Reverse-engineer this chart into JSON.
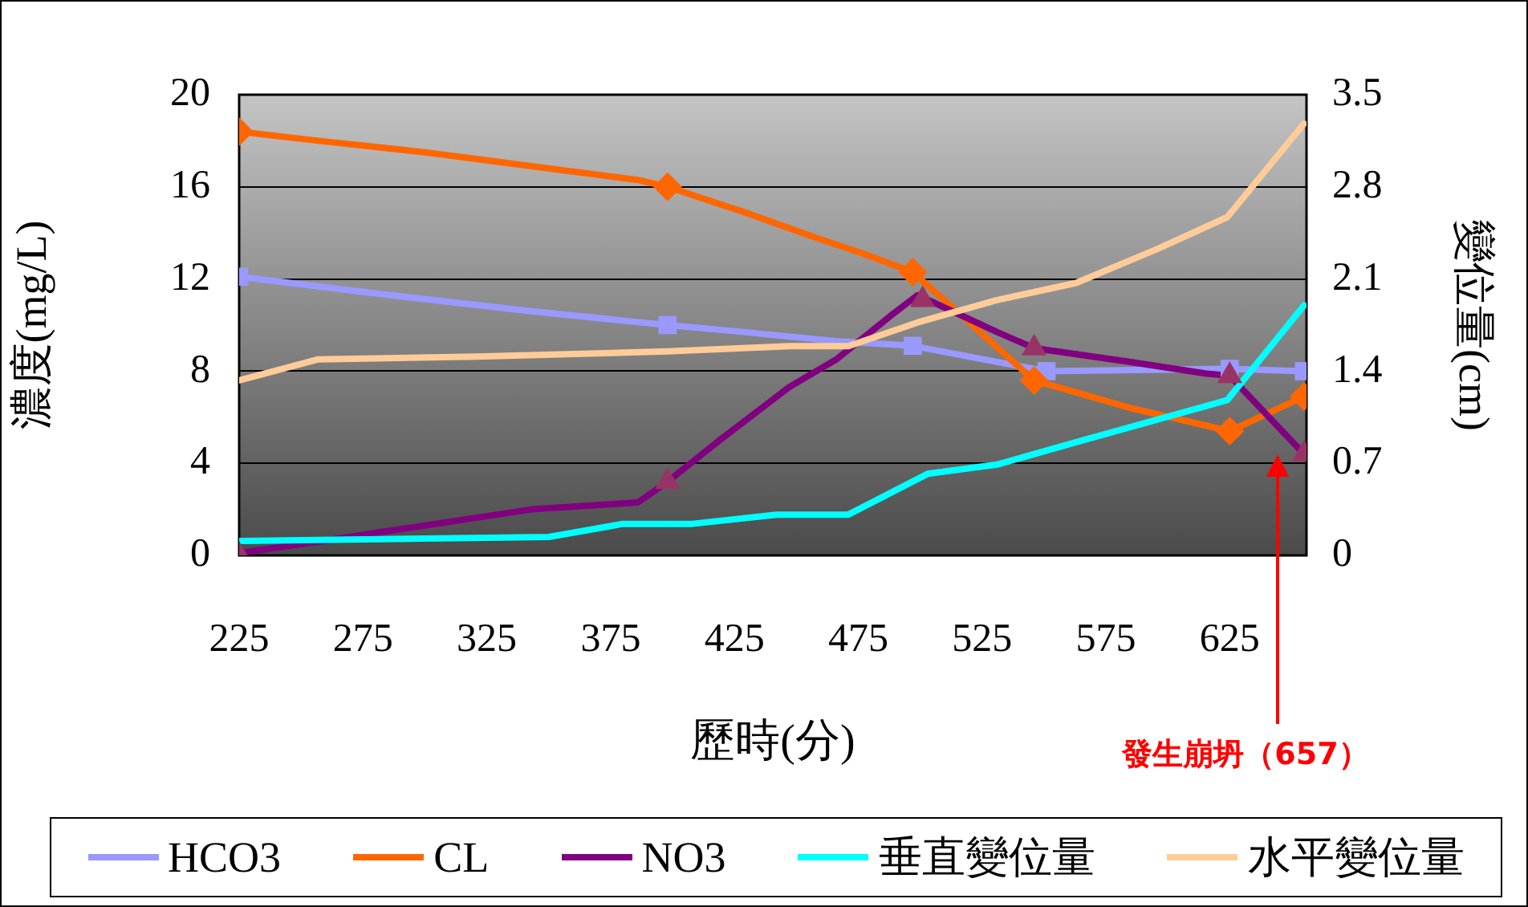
{
  "chart_data": {
    "type": "line",
    "xlabel": "歷時(分)",
    "ylabel": "濃度(mg/L)",
    "y2label": "變位量(cm)",
    "xlim": [
      225,
      656
    ],
    "xticks": [
      225,
      275,
      325,
      375,
      425,
      475,
      525,
      575,
      625
    ],
    "ylim": [
      0,
      20
    ],
    "yticks": [
      0,
      4,
      8,
      12,
      16,
      20
    ],
    "y2lim": [
      0,
      3.5
    ],
    "y2ticks": [
      0,
      0.7,
      1.4,
      2.1,
      2.8,
      3.5
    ],
    "grid": "y",
    "legend": "bottom",
    "annotations": [
      "發生崩坍（657）"
    ],
    "series": [
      {
        "name": "HCO3",
        "color": "#9999ff",
        "marker": "none",
        "x": [
          225,
          278,
          343,
          398,
          429,
          466,
          497,
          531,
          551,
          625,
          655
        ],
        "values": [
          12.1,
          11.4,
          10.6,
          10.0,
          9.7,
          9.3,
          9.1,
          8.4,
          8.0,
          8.1,
          8.0
        ]
      },
      {
        "name": "CL",
        "color": "#ff6600",
        "marker": "none",
        "x": [
          225,
          257,
          300,
          343,
          386,
          398,
          429,
          455,
          477,
          497,
          520,
          546,
          585,
          625,
          655
        ],
        "values": [
          18.4,
          18.0,
          17.5,
          16.9,
          16.3,
          16.0,
          14.9,
          13.9,
          13.1,
          12.3,
          10.1,
          7.6,
          6.4,
          5.4,
          6.9
        ]
      },
      {
        "name": "NO3",
        "color": "#800080",
        "marker": "none",
        "x": [
          225,
          257,
          300,
          343,
          386,
          398,
          419,
          447,
          466,
          488,
          499,
          531,
          546,
          585,
          615,
          625,
          655
        ],
        "values": [
          0.1,
          0.6,
          1.3,
          2.0,
          2.3,
          3.2,
          5.0,
          7.3,
          8.5,
          10.4,
          11.3,
          9.7,
          9.0,
          8.4,
          7.9,
          7.8,
          4.4
        ]
      },
      {
        "name": "垂直變位量",
        "color": "#00ffff",
        "marker": "none",
        "axis": "y2",
        "x": [
          225,
          350,
          380,
          408,
          442,
          471,
          503,
          531,
          563,
          624,
          655
        ],
        "values": [
          0.11,
          0.14,
          0.24,
          0.24,
          0.31,
          0.31,
          0.62,
          0.69,
          0.86,
          1.18,
          1.9
        ]
      },
      {
        "name": "水平變位量",
        "color": "#ffcc99",
        "marker": "none",
        "axis": "y2",
        "x": [
          225,
          257,
          321,
          398,
          447,
          471,
          499,
          531,
          563,
          596,
          624,
          655
        ],
        "values": [
          1.33,
          1.49,
          1.51,
          1.55,
          1.59,
          1.59,
          1.77,
          1.94,
          2.07,
          2.33,
          2.57,
          3.28
        ]
      },
      {
        "type": "scatter",
        "color": "#9999ff",
        "marker": "square",
        "x": [
          225,
          398,
          497,
          551,
          625,
          655
        ],
        "values": [
          12.1,
          10.0,
          9.1,
          8.0,
          8.1,
          8.0
        ]
      },
      {
        "type": "scatter",
        "color": "#ff6600",
        "marker": "diamond",
        "x": [
          225,
          398,
          497,
          546,
          625,
          655
        ],
        "values": [
          18.4,
          16.0,
          12.3,
          7.6,
          5.4,
          6.9
        ]
      },
      {
        "type": "scatter",
        "color": "#993366",
        "marker": "triangle",
        "x": [
          225,
          398,
          501,
          546,
          625,
          655
        ],
        "values": [
          0,
          3.2,
          11.1,
          9.0,
          7.8,
          4.4
        ]
      }
    ]
  }
}
